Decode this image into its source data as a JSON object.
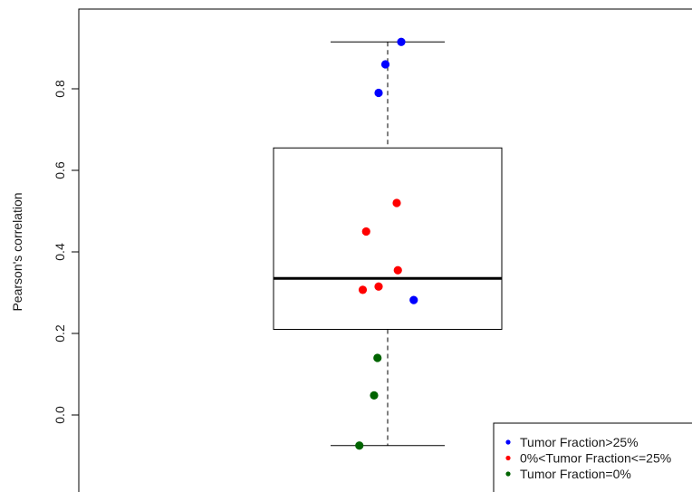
{
  "chart_data": {
    "type": "box",
    "title": "",
    "xlabel": "",
    "ylabel": "Pearson's correlation",
    "ylim": [
      -0.19,
      1.0
    ],
    "yticks": [
      0.0,
      0.2,
      0.4,
      0.6,
      0.8
    ],
    "ytick_labels": [
      "0.0",
      "0.2",
      "0.4",
      "0.6",
      "0.8"
    ],
    "box": {
      "whisker_low": -0.075,
      "q1": 0.21,
      "median": 0.335,
      "q3": 0.655,
      "whisker_high": 0.915
    },
    "series": [
      {
        "name": "Tumor Fraction>25%",
        "color": "#0000ff",
        "points": [
          {
            "jitter": 0.12,
            "y": 0.915
          },
          {
            "jitter": -0.02,
            "y": 0.86
          },
          {
            "jitter": -0.08,
            "y": 0.79
          },
          {
            "jitter": 0.23,
            "y": 0.282
          }
        ]
      },
      {
        "name": "0%<Tumor Fraction<=25%",
        "color": "#ff0000",
        "points": [
          {
            "jitter": 0.08,
            "y": 0.52
          },
          {
            "jitter": -0.19,
            "y": 0.45
          },
          {
            "jitter": 0.09,
            "y": 0.355
          },
          {
            "jitter": -0.08,
            "y": 0.315
          },
          {
            "jitter": -0.22,
            "y": 0.307
          }
        ]
      },
      {
        "name": "Tumor Fraction=0%",
        "color": "#006400",
        "points": [
          {
            "jitter": -0.09,
            "y": 0.14
          },
          {
            "jitter": -0.12,
            "y": 0.048
          },
          {
            "jitter": -0.25,
            "y": -0.075
          }
        ]
      }
    ],
    "legend_position": "bottom-right",
    "grid": false
  }
}
